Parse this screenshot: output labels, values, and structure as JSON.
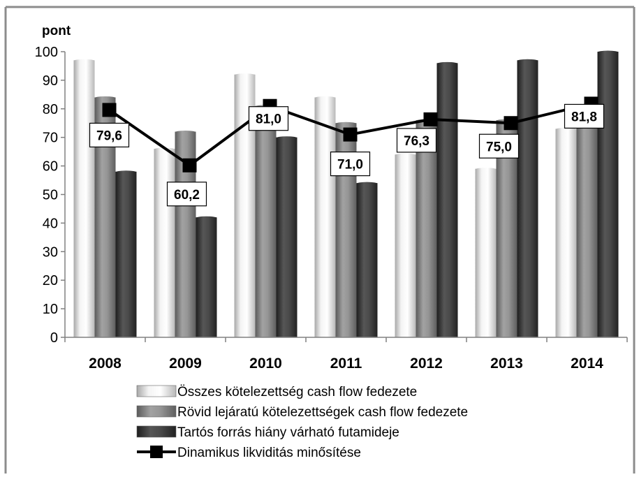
{
  "chart_data": {
    "type": "bar",
    "ylabel": "pont",
    "ylim": [
      0,
      100
    ],
    "yticks": [
      0,
      10,
      20,
      30,
      40,
      50,
      60,
      70,
      80,
      90,
      100
    ],
    "categories": [
      "2008",
      "2009",
      "2010",
      "2011",
      "2012",
      "2013",
      "2014"
    ],
    "grid": false,
    "legend_position": "bottom",
    "series": [
      {
        "name": "Összes kötelezettség cash flow fedezete",
        "kind": "bar",
        "color": "#e3e3e3",
        "values": [
          97,
          66,
          92,
          84,
          64,
          59,
          73
        ]
      },
      {
        "name": "Rövid lejáratú kötelezettségek cash flow fedezete",
        "kind": "bar",
        "color": "#8a8a8a",
        "values": [
          84,
          72,
          81,
          75,
          76,
          76,
          80
        ]
      },
      {
        "name": "Tartós forrás hiány várható futamideje",
        "kind": "bar",
        "color": "#3f3f3f",
        "values": [
          58,
          42,
          70,
          54,
          96,
          97,
          100
        ]
      },
      {
        "name": "Dinamikus likviditás minősítése",
        "kind": "line",
        "color": "#000000",
        "values": [
          79.6,
          60.2,
          81.0,
          71.0,
          76.3,
          75.0,
          81.8
        ],
        "labels": [
          "79,6",
          "60,2",
          "81,0",
          "71,0",
          "76,3",
          "75,0",
          "81,8"
        ]
      }
    ]
  }
}
